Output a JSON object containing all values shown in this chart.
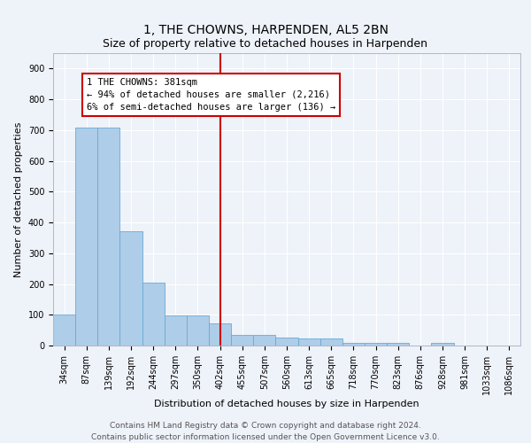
{
  "title": "1, THE CHOWNS, HARPENDEN, AL5 2BN",
  "subtitle": "Size of property relative to detached houses in Harpenden",
  "xlabel": "Distribution of detached houses by size in Harpenden",
  "ylabel": "Number of detached properties",
  "bar_labels": [
    "34sqm",
    "87sqm",
    "139sqm",
    "192sqm",
    "244sqm",
    "297sqm",
    "350sqm",
    "402sqm",
    "455sqm",
    "507sqm",
    "560sqm",
    "613sqm",
    "665sqm",
    "718sqm",
    "770sqm",
    "823sqm",
    "876sqm",
    "928sqm",
    "981sqm",
    "1033sqm",
    "1086sqm"
  ],
  "bar_values": [
    100,
    707,
    707,
    372,
    205,
    98,
    98,
    72,
    34,
    35,
    27,
    22,
    22,
    10,
    10,
    10,
    0,
    10,
    0,
    0,
    0
  ],
  "bar_color": "#aecde8",
  "bar_edge_color": "#6aaad4",
  "vline_x": 7.0,
  "vline_color": "#cc0000",
  "annotation_text": "1 THE CHOWNS: 381sqm\n← 94% of detached houses are smaller (2,216)\n6% of semi-detached houses are larger (136) →",
  "annotation_box_color": "#ffffff",
  "annotation_box_edge": "#cc0000",
  "ylim": [
    0,
    950
  ],
  "yticks": [
    0,
    100,
    200,
    300,
    400,
    500,
    600,
    700,
    800,
    900
  ],
  "footer_text": "Contains HM Land Registry data © Crown copyright and database right 2024.\nContains public sector information licensed under the Open Government Licence v3.0.",
  "background_color": "#eef2f9",
  "grid_color": "#ffffff",
  "title_fontsize": 10,
  "subtitle_fontsize": 9,
  "axis_label_fontsize": 8,
  "tick_fontsize": 7,
  "annotation_fontsize": 7.5,
  "footer_fontsize": 6.5
}
